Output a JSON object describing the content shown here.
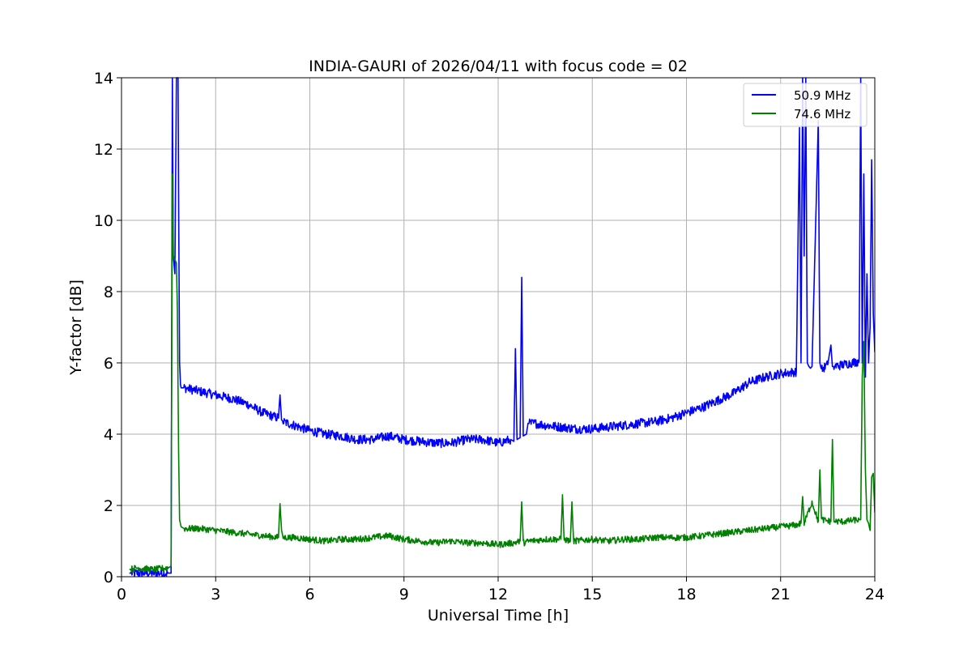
{
  "chart_data": {
    "type": "line",
    "title": "INDIA-GAURI of 2026/04/11 with focus code = 02",
    "xlabel": "Universal Time [h]",
    "ylabel": "Y-factor [dB]",
    "xlim": [
      0,
      24
    ],
    "ylim": [
      0,
      14
    ],
    "xticks": [
      0,
      3,
      6,
      9,
      12,
      15,
      18,
      21,
      24
    ],
    "yticks": [
      0,
      2,
      4,
      6,
      8,
      10,
      12,
      14
    ],
    "grid": true,
    "legend_position": "top-right",
    "series": [
      {
        "name": "50.9 MHz",
        "color": "#0000ff",
        "x": [
          0.25,
          0.5,
          1.0,
          1.5,
          1.58,
          1.62,
          1.65,
          1.7,
          1.75,
          1.78,
          1.8,
          1.82,
          1.85,
          1.88,
          1.9,
          1.95,
          2.0,
          2.5,
          3.0,
          3.5,
          4.0,
          4.5,
          5.0,
          5.05,
          5.1,
          5.15,
          5.5,
          6.0,
          6.5,
          7.0,
          7.5,
          8.0,
          8.5,
          9.0,
          9.5,
          10.0,
          10.5,
          11.0,
          11.5,
          12.0,
          12.4,
          12.5,
          12.55,
          12.6,
          12.7,
          12.75,
          12.8,
          12.9,
          12.95,
          13.0,
          13.2,
          13.5,
          14.0,
          14.5,
          15.0,
          15.5,
          16.0,
          16.5,
          17.0,
          17.5,
          18.0,
          18.5,
          19.0,
          19.5,
          20.0,
          20.5,
          21.0,
          21.5,
          21.6,
          21.65,
          21.7,
          21.75,
          21.8,
          21.85,
          21.9,
          21.95,
          22.0,
          22.2,
          22.25,
          22.3,
          22.5,
          22.6,
          22.65,
          22.7,
          23.0,
          23.5,
          23.55,
          23.6,
          23.65,
          23.7,
          23.75,
          23.8,
          23.85,
          23.9,
          23.95,
          24.0
        ],
        "y": [
          0.1,
          0.1,
          0.1,
          0.1,
          0.1,
          14.0,
          9.0,
          8.5,
          14.0,
          14.0,
          14.0,
          10.6,
          6.0,
          5.4,
          5.3,
          5.3,
          5.3,
          5.2,
          5.1,
          5.0,
          4.85,
          4.6,
          4.45,
          5.1,
          4.4,
          4.35,
          4.25,
          4.1,
          4.0,
          3.95,
          3.85,
          3.85,
          3.95,
          3.85,
          3.8,
          3.75,
          3.75,
          3.85,
          3.85,
          3.75,
          3.85,
          3.8,
          6.4,
          3.85,
          3.9,
          8.4,
          3.95,
          4.0,
          4.3,
          4.3,
          4.3,
          4.25,
          4.2,
          4.15,
          4.15,
          4.2,
          4.25,
          4.3,
          4.35,
          4.45,
          4.6,
          4.75,
          4.95,
          5.15,
          5.45,
          5.6,
          5.7,
          5.75,
          12.6,
          6.0,
          14.0,
          9.0,
          14.0,
          6.0,
          5.9,
          5.85,
          5.9,
          12.8,
          6.0,
          5.8,
          5.95,
          6.5,
          5.9,
          5.9,
          5.95,
          6.05,
          14.0,
          6.0,
          11.3,
          5.6,
          8.5,
          6.0,
          7.0,
          11.7,
          7.4,
          6.3
        ]
      },
      {
        "name": "74.6 MHz",
        "color": "#008000",
        "x": [
          0.25,
          0.5,
          1.0,
          1.5,
          1.58,
          1.62,
          1.65,
          1.7,
          1.75,
          1.78,
          1.8,
          1.82,
          1.85,
          1.9,
          2.0,
          2.5,
          3.0,
          3.5,
          4.0,
          4.5,
          5.0,
          5.05,
          5.1,
          5.15,
          5.5,
          6.0,
          6.5,
          7.0,
          7.5,
          8.0,
          8.5,
          9.0,
          9.5,
          10.0,
          10.5,
          11.0,
          11.5,
          12.0,
          12.5,
          12.7,
          12.75,
          12.8,
          13.0,
          13.5,
          14.0,
          14.05,
          14.1,
          14.3,
          14.35,
          14.4,
          15.0,
          15.5,
          16.0,
          16.5,
          17.0,
          17.5,
          18.0,
          18.5,
          19.0,
          19.5,
          20.0,
          20.5,
          21.0,
          21.5,
          21.65,
          21.7,
          21.75,
          22.0,
          22.2,
          22.25,
          22.3,
          22.6,
          22.65,
          22.7,
          23.0,
          23.5,
          23.55,
          23.6,
          23.65,
          23.7,
          23.75,
          23.8,
          23.85,
          23.9,
          23.95,
          24.0
        ],
        "y": [
          0.2,
          0.25,
          0.2,
          0.25,
          0.3,
          11.3,
          9.0,
          8.9,
          8.8,
          7.5,
          5.3,
          3.5,
          1.6,
          1.4,
          1.35,
          1.35,
          1.3,
          1.25,
          1.2,
          1.15,
          1.1,
          2.05,
          1.3,
          1.1,
          1.1,
          1.05,
          1.0,
          1.05,
          1.05,
          1.1,
          1.15,
          1.05,
          1.0,
          0.95,
          1.0,
          0.95,
          0.95,
          0.9,
          0.95,
          1.0,
          2.1,
          0.95,
          1.0,
          1.05,
          1.05,
          2.3,
          1.05,
          1.0,
          2.1,
          1.0,
          1.05,
          1.0,
          1.05,
          1.05,
          1.1,
          1.1,
          1.1,
          1.15,
          1.2,
          1.25,
          1.3,
          1.35,
          1.4,
          1.45,
          1.5,
          2.25,
          1.5,
          2.1,
          1.55,
          3.0,
          1.6,
          1.55,
          3.85,
          1.55,
          1.55,
          1.6,
          1.6,
          5.6,
          6.6,
          3.0,
          1.6,
          1.5,
          1.3,
          2.8,
          2.9,
          1.8
        ]
      }
    ]
  }
}
